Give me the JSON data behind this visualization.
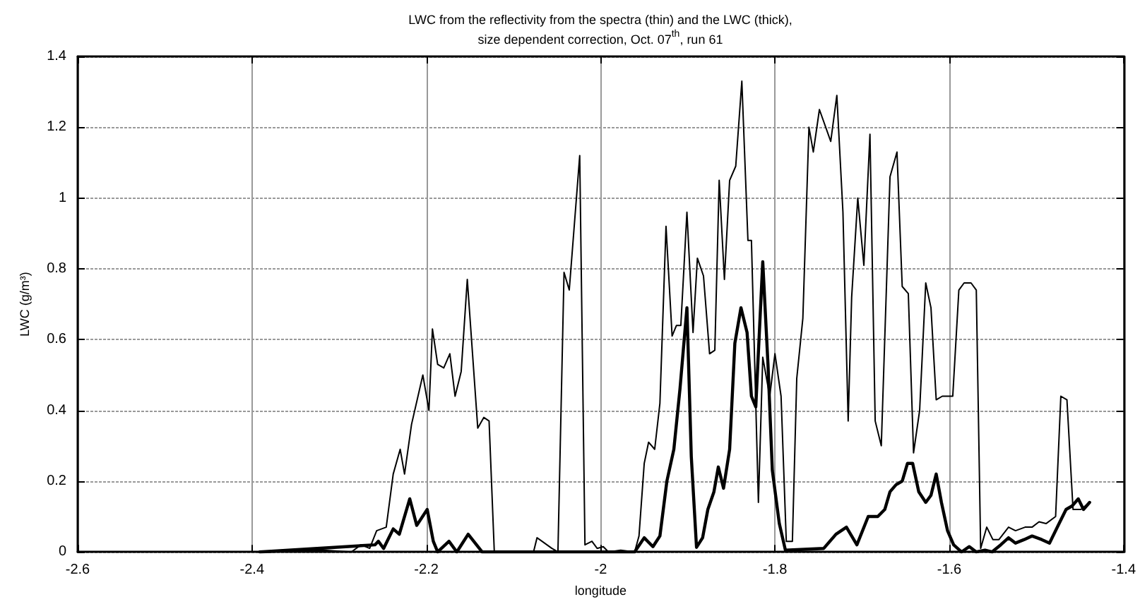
{
  "chart_data": {
    "type": "line",
    "title": "LWC from the reflectivity from the spectra (thin) and the LWC (thick),\nsize dependent correction, Oct. 07$^{th}$, run 61",
    "xlabel": "longitude",
    "ylabel": "LWC (g/m³)",
    "xlim": [
      -2.6,
      -1.4
    ],
    "xticks": [
      -2.6,
      -2.4,
      -2.2,
      -2,
      -1.8,
      -1.6,
      -1.4
    ],
    "ylim": [
      0,
      1.4
    ],
    "yticks": [
      0,
      0.2,
      0.4,
      0.6,
      0.8,
      1,
      1.2,
      1.4
    ],
    "grid": true,
    "marker": "none",
    "line_style": "solid",
    "series": [
      {
        "color": "#000000",
        "x": [
          -2.399,
          -2.318,
          -2.286,
          -2.275,
          -2.265,
          -2.257,
          -2.246,
          -2.238,
          -2.23,
          -2.225,
          -2.217,
          -2.204,
          -2.197,
          -2.193,
          -2.187,
          -2.18,
          -2.173,
          -2.167,
          -2.16,
          -2.153,
          -2.141,
          -2.134,
          -2.128,
          -2.122,
          -2.077,
          -2.073,
          -2.056,
          -2.049,
          -2.042,
          -2.036,
          -2.024,
          -2.018,
          -2.01,
          -2.004,
          -1.997,
          -1.991,
          -1.977,
          -1.961,
          -1.956,
          -1.95,
          -1.945,
          -1.938,
          -1.932,
          -1.925,
          -1.918,
          -1.913,
          -1.908,
          -1.901,
          -1.894,
          -1.889,
          -1.882,
          -1.875,
          -1.869,
          -1.864,
          -1.858,
          -1.852,
          -1.845,
          -1.838,
          -1.831,
          -1.827,
          -1.819,
          -1.814,
          -1.806,
          -1.8,
          -1.793,
          -1.787,
          -1.78,
          -1.775,
          -1.768,
          -1.761,
          -1.756,
          -1.749,
          -1.736,
          -1.729,
          -1.722,
          -1.716,
          -1.712,
          -1.705,
          -1.698,
          -1.691,
          -1.685,
          -1.678,
          -1.668,
          -1.66,
          -1.654,
          -1.647,
          -1.641,
          -1.634,
          -1.627,
          -1.621,
          -1.615,
          -1.608,
          -1.596,
          -1.589,
          -1.583,
          -1.575,
          -1.569,
          -1.564,
          -1.557,
          -1.55,
          -1.543,
          -1.532,
          -1.524,
          -1.513,
          -1.505,
          -1.497,
          -1.489,
          -1.478,
          -1.472,
          -1.465,
          -1.458,
          -1.449,
          -1.439
        ],
        "values": [
          0,
          0.005,
          0,
          0.02,
          0.01,
          0.06,
          0.07,
          0.22,
          0.29,
          0.22,
          0.36,
          0.5,
          0.4,
          0.63,
          0.53,
          0.52,
          0.56,
          0.44,
          0.51,
          0.77,
          0.35,
          0.38,
          0.37,
          0,
          0,
          0.04,
          0.01,
          0,
          0.79,
          0.74,
          1.12,
          0.02,
          0.03,
          0.01,
          0.015,
          0,
          0.005,
          0,
          0.045,
          0.25,
          0.31,
          0.29,
          0.42,
          0.92,
          0.61,
          0.64,
          0.64,
          0.96,
          0.62,
          0.83,
          0.78,
          0.56,
          0.57,
          1.05,
          0.77,
          1.05,
          1.09,
          1.33,
          0.88,
          0.88,
          0.14,
          0.55,
          0.44,
          0.56,
          0.44,
          0.03,
          0.03,
          0.49,
          0.66,
          1.2,
          1.13,
          1.25,
          1.16,
          1.29,
          0.96,
          0.37,
          0.72,
          1,
          0.81,
          1.18,
          0.37,
          0.3,
          1.06,
          1.13,
          0.75,
          0.73,
          0.28,
          0.4,
          0.76,
          0.69,
          0.43,
          0.44,
          0.44,
          0.74,
          0.76,
          0.76,
          0.74,
          0.01,
          0.07,
          0.035,
          0.035,
          0.07,
          0.06,
          0.07,
          0.07,
          0.085,
          0.08,
          0.1,
          0.44,
          0.43,
          0.12,
          0.12,
          0.14
        ]
      },
      {
        "color": "#000000",
        "x": [
          -2.391,
          -2.259,
          -2.255,
          -2.249,
          -2.238,
          -2.231,
          -2.219,
          -2.211,
          -2.199,
          -2.192,
          -2.187,
          -2.174,
          -2.165,
          -2.152,
          -2.136,
          -1.961,
          -1.95,
          -1.94,
          -1.932,
          -1.924,
          -1.916,
          -1.909,
          -1.901,
          -1.896,
          -1.89,
          -1.883,
          -1.877,
          -1.87,
          -1.865,
          -1.859,
          -1.852,
          -1.846,
          -1.839,
          -1.832,
          -1.827,
          -1.822,
          -1.814,
          -1.808,
          -1.803,
          -1.795,
          -1.788,
          -1.744,
          -1.73,
          -1.718,
          -1.706,
          -1.693,
          -1.682,
          -1.674,
          -1.668,
          -1.661,
          -1.654,
          -1.648,
          -1.642,
          -1.635,
          -1.627,
          -1.621,
          -1.615,
          -1.609,
          -1.602,
          -1.595,
          -1.586,
          -1.577,
          -1.569,
          -1.559,
          -1.551,
          -1.541,
          -1.532,
          -1.524,
          -1.514,
          -1.505,
          -1.494,
          -1.485,
          -1.476,
          -1.466,
          -1.459,
          -1.452,
          -1.446,
          -1.439
        ],
        "values": [
          0,
          0.02,
          0.03,
          0.01,
          0.065,
          0.05,
          0.15,
          0.075,
          0.12,
          0.03,
          0,
          0.03,
          0,
          0.05,
          0,
          0,
          0.04,
          0.015,
          0.045,
          0.2,
          0.29,
          0.46,
          0.69,
          0.27,
          0.013,
          0.04,
          0.12,
          0.17,
          0.24,
          0.18,
          0.29,
          0.59,
          0.69,
          0.62,
          0.44,
          0.41,
          0.82,
          0.53,
          0.23,
          0.08,
          0.005,
          0.01,
          0.05,
          0.07,
          0.02,
          0.1,
          0.1,
          0.12,
          0.17,
          0.19,
          0.2,
          0.25,
          0.25,
          0.17,
          0.14,
          0.16,
          0.22,
          0.14,
          0.06,
          0.02,
          0,
          0.015,
          0,
          0.005,
          0,
          0.02,
          0.04,
          0.025,
          0.035,
          0.045,
          0.035,
          0.025,
          0.07,
          0.12,
          0.13,
          0.15,
          0.12,
          0.14
        ]
      }
    ]
  }
}
